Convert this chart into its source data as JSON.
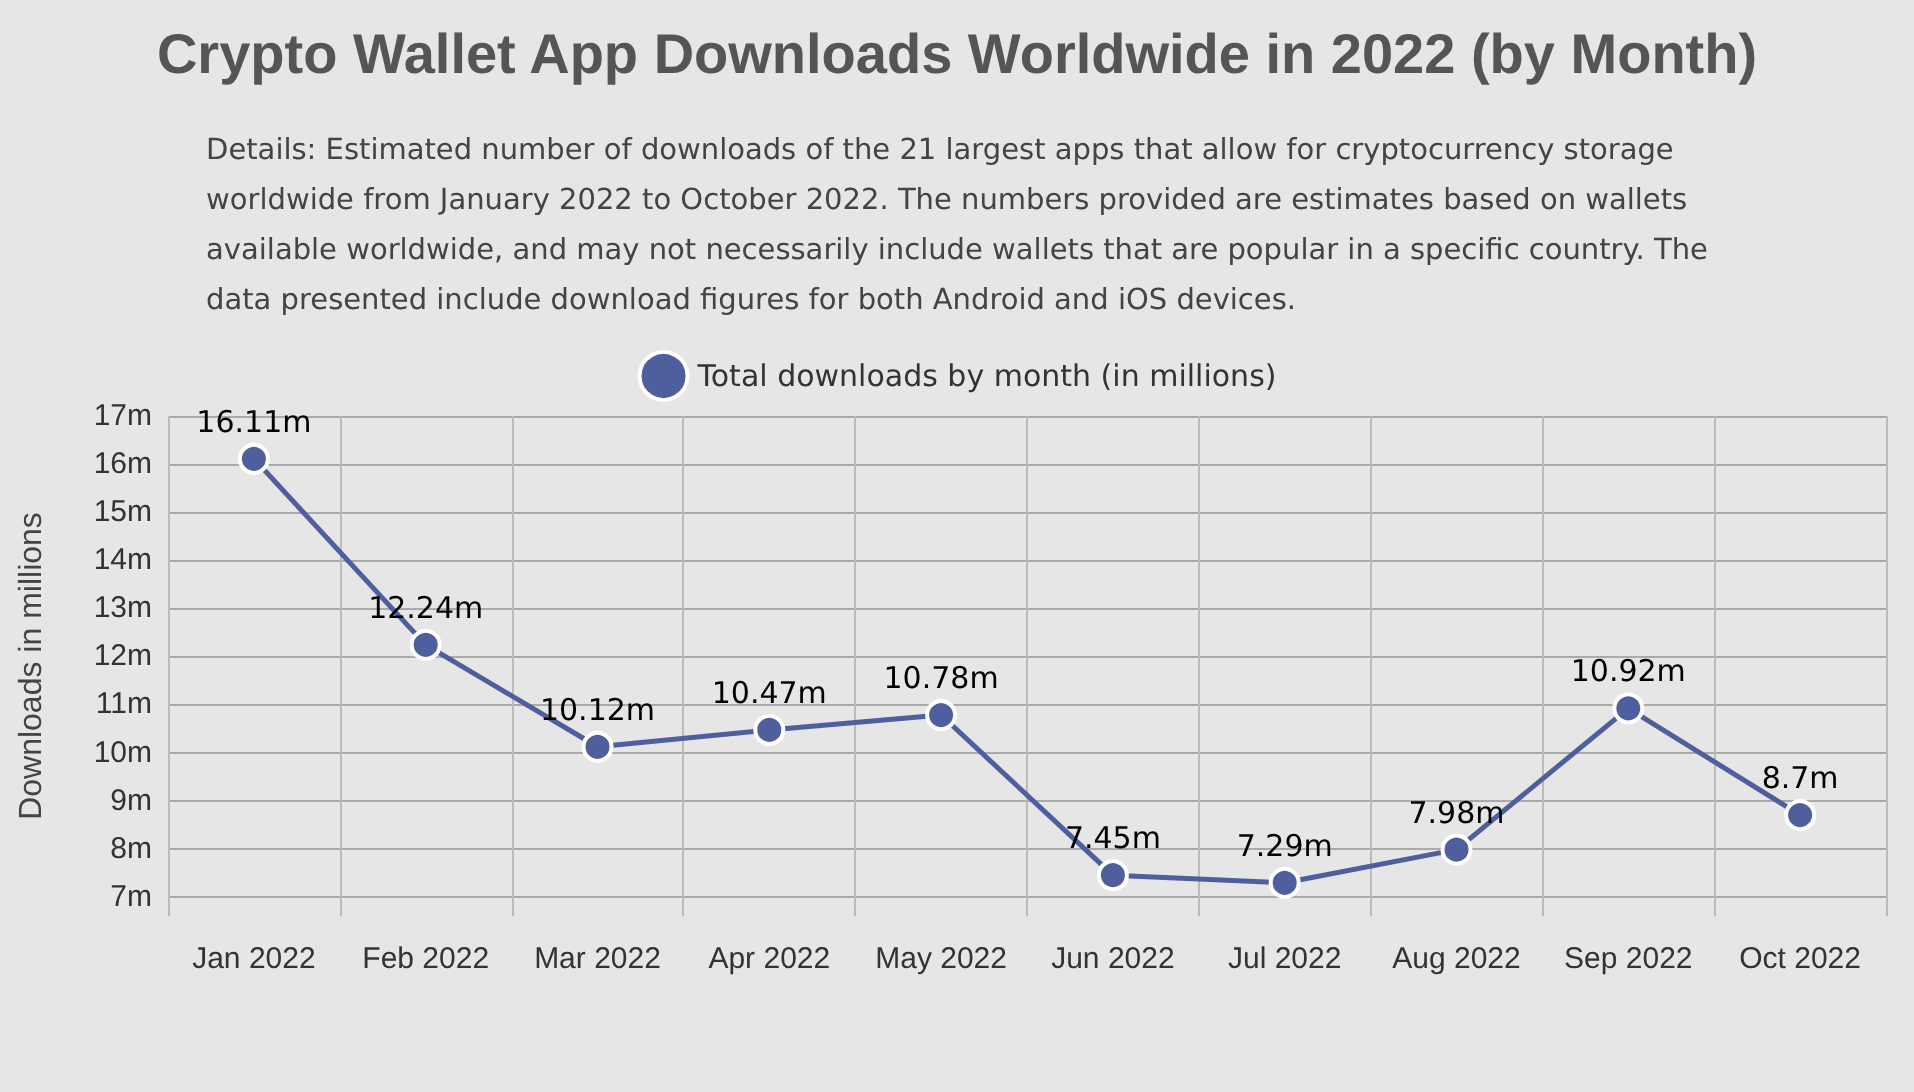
{
  "chart_data": {
    "type": "line",
    "title": "Crypto Wallet App Downloads Worldwide in 2022 (by Month)",
    "subtitle": "Details: Estimated number of downloads of the 21 largest apps that allow for cryptocurrency storage\nworldwide from January 2022 to October 2022. The numbers provided are estimates based on wallets\navailable worldwide, and may not necessarily include wallets that are popular in a specific country. The\ndata presented include download figures for both Android and iOS devices.",
    "ylabel": "Downloads in millions",
    "categories": [
      "Jan 2022",
      "Feb 2022",
      "Mar 2022",
      "Apr 2022",
      "May 2022",
      "Jun 2022",
      "Jul 2022",
      "Aug 2022",
      "Sep 2022",
      "Oct 2022"
    ],
    "series": [
      {
        "name": "Total downloads by month (in millions)",
        "color": "#4f5f9e",
        "values": [
          16.11,
          12.24,
          10.12,
          10.47,
          10.78,
          7.45,
          7.29,
          7.98,
          10.92,
          8.7
        ],
        "value_labels": [
          "16.11m",
          "12.24m",
          "10.12m",
          "10.47m",
          "10.78m",
          "7.45m",
          "7.29m",
          "7.98m",
          "10.92m",
          "8.7m"
        ]
      }
    ],
    "ylim": [
      6.6,
      17
    ],
    "yticks": [
      {
        "value": 7,
        "label": "7m"
      },
      {
        "value": 8,
        "label": "8m"
      },
      {
        "value": 9,
        "label": "9m"
      },
      {
        "value": 10,
        "label": "10m"
      },
      {
        "value": 11,
        "label": "11m"
      },
      {
        "value": 12,
        "label": "12m"
      },
      {
        "value": 13,
        "label": "13m"
      },
      {
        "value": 14,
        "label": "14m"
      },
      {
        "value": 15,
        "label": "15m"
      },
      {
        "value": 16,
        "label": "16m"
      },
      {
        "value": 17,
        "label": "17m"
      }
    ],
    "grid": true,
    "legend": "top",
    "marker": "circle",
    "line_style": "solid"
  }
}
